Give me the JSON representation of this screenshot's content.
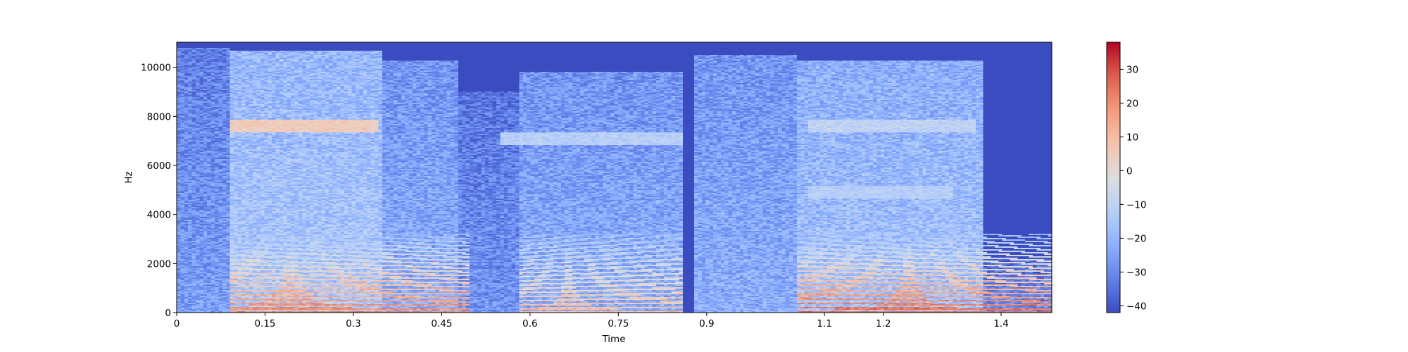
{
  "chart_data": {
    "type": "heatmap",
    "kind": "spectrogram",
    "title": "",
    "xlabel": "Time",
    "ylabel": "Hz",
    "xlim": [
      0,
      1.486
    ],
    "ylim": [
      0,
      11025
    ],
    "x_ticks": [
      0,
      0.15,
      0.3,
      0.45,
      0.6,
      0.75,
      0.9,
      1.1,
      1.2,
      1.4
    ],
    "x_tick_labels": [
      "0",
      "0.15",
      "0.3",
      "0.45",
      "0.6",
      "0.75",
      "0.9",
      "1.1",
      "1.2",
      "1.4"
    ],
    "y_ticks": [
      0,
      2000,
      4000,
      6000,
      8000,
      10000
    ],
    "y_tick_labels": [
      "0",
      "2000",
      "4000",
      "6000",
      "8000",
      "10000"
    ],
    "colormap": "coolwarm",
    "colorbar": {
      "range": [
        -42,
        38
      ],
      "ticks": [
        -40,
        -30,
        -20,
        -10,
        0,
        10,
        20,
        30
      ],
      "tick_labels": [
        "−40",
        "−30",
        "−20",
        "−10",
        "0",
        "10",
        "20",
        "30"
      ]
    },
    "floor_db": -42,
    "segments": [
      {
        "t_start": 0.0,
        "t_end": 0.09,
        "level_db": -26,
        "max_hz": 10800
      },
      {
        "t_start": 0.09,
        "t_end": 0.35,
        "level_db": -14,
        "max_hz": 10700
      },
      {
        "t_start": 0.35,
        "t_end": 0.48,
        "level_db": -22,
        "max_hz": 10300
      },
      {
        "t_start": 0.48,
        "t_end": 0.58,
        "level_db": -28,
        "max_hz": 9000
      },
      {
        "t_start": 0.58,
        "t_end": 0.86,
        "level_db": -22,
        "max_hz": 9800
      },
      {
        "t_start": 0.86,
        "t_end": 0.88,
        "level_db": -42,
        "max_hz": 0
      },
      {
        "t_start": 0.88,
        "t_end": 1.05,
        "level_db": -22,
        "max_hz": 10500
      },
      {
        "t_start": 1.05,
        "t_end": 1.37,
        "level_db": -16,
        "max_hz": 10300
      },
      {
        "t_start": 1.37,
        "t_end": 1.486,
        "level_db": -30,
        "max_hz": 2200
      }
    ],
    "harmonic_tracks": [
      {
        "t_start": 0.09,
        "t_end": 0.5,
        "f0_start_hz": 180,
        "f0_end_hz": 150,
        "peak_db": 22
      },
      {
        "t_start": 0.58,
        "t_end": 0.86,
        "f0_start_hz": 160,
        "f0_end_hz": 200,
        "peak_db": 10
      },
      {
        "t_start": 1.05,
        "t_end": 1.486,
        "f0_start_hz": 190,
        "f0_end_hz": 150,
        "peak_db": 26
      }
    ],
    "formant_bands": [
      {
        "t_start": 0.09,
        "t_end": 0.34,
        "hz": 7600,
        "peak_db": 5
      },
      {
        "t_start": 0.55,
        "t_end": 0.86,
        "hz": 7100,
        "peak_db": -12
      },
      {
        "t_start": 1.07,
        "t_end": 1.36,
        "hz": 7600,
        "peak_db": -10
      },
      {
        "t_start": 1.07,
        "t_end": 1.32,
        "hz": 4900,
        "peak_db": -12
      }
    ]
  }
}
